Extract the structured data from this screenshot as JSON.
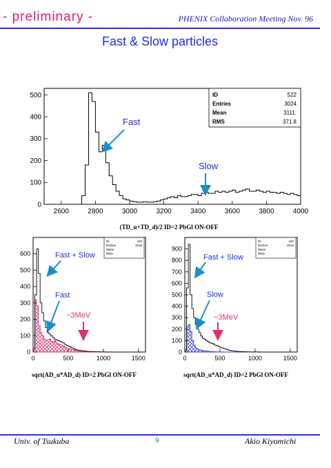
{
  "header": {
    "preliminary": "- preliminary -",
    "meeting": "PHENIX Collaboration Meeting Nov. 96"
  },
  "page_title": "Fast & Slow particles",
  "footer": {
    "left": "Univ. of Tsukuba",
    "page_number": "9",
    "right": "Akio Kiyomichi"
  },
  "colors": {
    "annotation": "#1c8fc8",
    "label_blue": "#1c2ee0",
    "mev": "#e0306e",
    "header_pink": "#e01b6e",
    "rule": "#2b2bd8"
  },
  "chart_data": [
    {
      "type": "histogram",
      "xlabel": "(TD_u+TD_d)/2 ID=2 PbGl ON-OFF",
      "xlim": [
        2500,
        4000
      ],
      "ylim": [
        0,
        530
      ],
      "xticks": [
        "2600",
        "2800",
        "3000",
        "3200",
        "3400",
        "3600",
        "3800",
        "4000"
      ],
      "yticks": [
        "0",
        "100",
        "200",
        "300",
        "400",
        "500"
      ],
      "bin_start": 2720,
      "bin_width": 20,
      "values": [
        40,
        180,
        510,
        470,
        330,
        240,
        270,
        190,
        130,
        90,
        60,
        40,
        25,
        20,
        15,
        12,
        10,
        10,
        12,
        10,
        10,
        12,
        15,
        20,
        25,
        30,
        35,
        30,
        40,
        35,
        35,
        40,
        45,
        45,
        40,
        50,
        55,
        50,
        50,
        60,
        55,
        60,
        55,
        60,
        65,
        55,
        60,
        65,
        70,
        60,
        60,
        65,
        60,
        55,
        60,
        55,
        55,
        50,
        55,
        50,
        45,
        50,
        45,
        40
      ],
      "stats": {
        "labels": [
          "ID",
          "Entries",
          "Mean",
          "RMS"
        ],
        "values": [
          "522",
          "3024",
          "3111.",
          "371.8"
        ]
      },
      "annotations": {
        "fast": "Fast",
        "slow": "Slow"
      }
    },
    {
      "type": "histogram",
      "xlabel": "sqrt(AD_u*AD_d) ID=2 PbGl ON-OFF",
      "xlim": [
        0,
        1600
      ],
      "ylim": [
        0,
        700
      ],
      "xticks": [
        "0",
        "500",
        "1000",
        "1500"
      ],
      "yticks": [
        "0",
        "100",
        "200",
        "300",
        "400",
        "500",
        "600"
      ],
      "bin_width": 25,
      "series": [
        {
          "style": "outline",
          "values": [
            20,
            350,
            630,
            480,
            300,
            240,
            190,
            150,
            120,
            110,
            100,
            90,
            80,
            75,
            70,
            65,
            60,
            55,
            45,
            40,
            35,
            30,
            25,
            20,
            15,
            12,
            10,
            8,
            7,
            6,
            5,
            4,
            4,
            3,
            3,
            2,
            2,
            2,
            1,
            1,
            1,
            1,
            0,
            0,
            1,
            0,
            0,
            0,
            0,
            0,
            0,
            0,
            0,
            0,
            0,
            0,
            0,
            0,
            0,
            0,
            0,
            0,
            0,
            0
          ]
        },
        {
          "style": "hatch",
          "label": "Fast",
          "color": "#e0306e",
          "values": [
            10,
            320,
            280,
            160,
            120,
            100,
            80,
            70,
            75,
            80,
            65,
            60,
            70,
            55,
            50,
            45,
            40,
            35,
            30,
            25,
            20,
            18,
            15,
            12,
            10,
            8,
            6,
            5,
            4,
            3,
            3,
            2,
            2,
            2,
            1,
            1,
            1,
            1,
            0,
            0,
            1,
            0,
            0,
            0,
            0,
            0,
            0,
            0,
            0,
            0,
            0,
            0,
            0,
            0,
            0,
            0,
            0,
            0,
            0,
            0,
            0,
            0,
            0,
            0
          ]
        }
      ],
      "stats": {
        "labels": [
          "ID",
          "Entries",
          "Mean",
          "RMS"
        ],
        "values": [
          "410",
          "3015",
          "",
          ""
        ]
      },
      "annotations": {
        "all": "Fast + Slow",
        "sub": "Fast",
        "mev": "~3MeV"
      }
    },
    {
      "type": "histogram",
      "xlabel": "sqrt(AD_u*AD_d) ID=2 PbGl ON-OFF",
      "xlim": [
        0,
        1600
      ],
      "ylim": [
        0,
        1000
      ],
      "xticks": [
        "0",
        "500",
        "1000",
        "1500"
      ],
      "yticks": [
        "0",
        "100",
        "200",
        "300",
        "400",
        "500",
        "600",
        "700",
        "800",
        "900"
      ],
      "bin_width": 25,
      "series": [
        {
          "style": "outline",
          "values": [
            20,
            560,
            940,
            500,
            380,
            300,
            240,
            200,
            170,
            140,
            120,
            110,
            100,
            90,
            80,
            75,
            70,
            60,
            55,
            50,
            40,
            35,
            30,
            25,
            20,
            15,
            12,
            10,
            8,
            6,
            5,
            4,
            3,
            3,
            2,
            2,
            2,
            1,
            1,
            1,
            1,
            1,
            0,
            0,
            0,
            0,
            0,
            0,
            0,
            0,
            0,
            0,
            0,
            0,
            0,
            0,
            0,
            0,
            0,
            0,
            0,
            0,
            0,
            0
          ]
        },
        {
          "style": "hatch",
          "label": "Slow",
          "color": "#3a46c8",
          "values": [
            10,
            220,
            240,
            180,
            100,
            60,
            35,
            25,
            20,
            15,
            12,
            10,
            8,
            6,
            5,
            4,
            3,
            2,
            2,
            1,
            1,
            1,
            0,
            0,
            0,
            0,
            0,
            0,
            0,
            0,
            0,
            0,
            0,
            0,
            0,
            0,
            0,
            0,
            0,
            0,
            0,
            0,
            0,
            0,
            0,
            0,
            0,
            0,
            0,
            0,
            0,
            0,
            0,
            0,
            0,
            0,
            0,
            0,
            0,
            0,
            0,
            0,
            0,
            0
          ]
        }
      ],
      "stats": {
        "labels": [
          "ID",
          "Entries",
          "Mean",
          "RMS"
        ],
        "values": [
          "410",
          "3015",
          "",
          ""
        ]
      },
      "annotations": {
        "all": "Fast + Slow",
        "sub": "Slow",
        "mev": "~3MeV"
      }
    }
  ]
}
